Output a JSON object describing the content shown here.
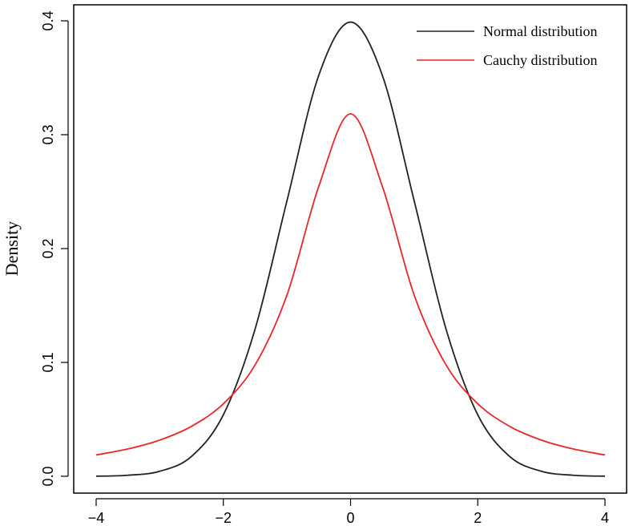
{
  "chart_data": {
    "type": "line",
    "title": "",
    "xlabel": "",
    "ylabel": "Density",
    "xlim": [
      -4,
      4
    ],
    "ylim": [
      0,
      0.4
    ],
    "x_ticks": [
      "-4",
      "-2",
      "0",
      "2",
      "4"
    ],
    "y_ticks": [
      "0.0",
      "0.1",
      "0.2",
      "0.3",
      "0.4"
    ],
    "grid": false,
    "legend_position": "top-right",
    "series": [
      {
        "name": "Normal distribution",
        "color": "#222222",
        "x": [
          -4,
          -3.5,
          -3,
          -2.5,
          -2,
          -1.5,
          -1,
          -0.5,
          0,
          0.5,
          1,
          1.5,
          2,
          2.5,
          3,
          3.5,
          4
        ],
        "y": [
          0.0001,
          0.0009,
          0.0044,
          0.0175,
          0.054,
          0.1295,
          0.242,
          0.3521,
          0.3989,
          0.3521,
          0.242,
          0.1295,
          0.054,
          0.0175,
          0.0044,
          0.0009,
          0.0001
        ]
      },
      {
        "name": "Cauchy distribution",
        "color": "#e8262b",
        "x": [
          -4,
          -3.5,
          -3,
          -2.5,
          -2,
          -1.5,
          -1,
          -0.5,
          0,
          0.5,
          1,
          1.5,
          2,
          2.5,
          3,
          3.5,
          4
        ],
        "y": [
          0.0187,
          0.024,
          0.0318,
          0.0439,
          0.0637,
          0.0979,
          0.1592,
          0.2546,
          0.3183,
          0.2546,
          0.1592,
          0.0979,
          0.0637,
          0.0439,
          0.0318,
          0.024,
          0.0187
        ]
      }
    ]
  }
}
